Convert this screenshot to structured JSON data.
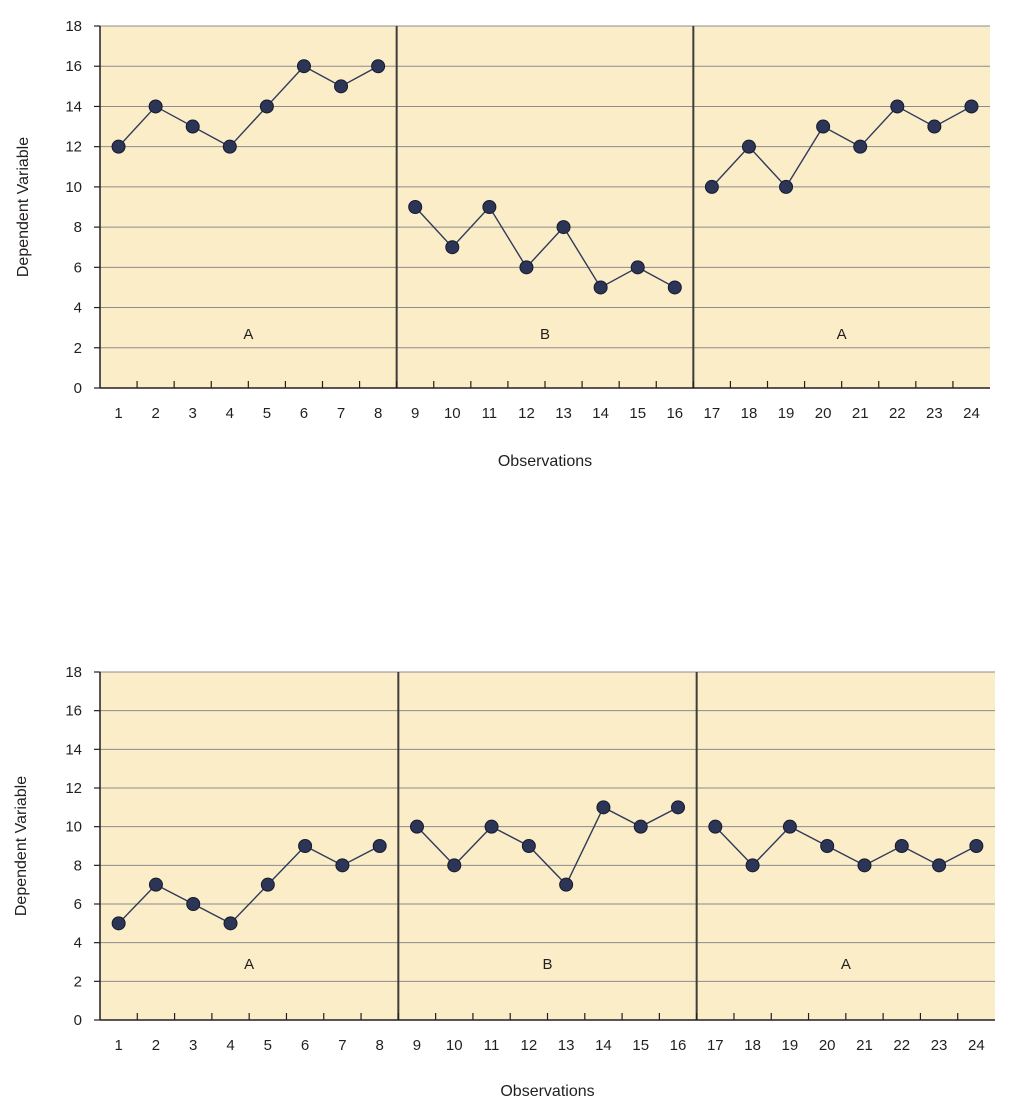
{
  "colors": {
    "plot_background": "#fbedc8",
    "gridline": "#8c8c8c",
    "axis": "#231f20",
    "phase_divider": "#3d3d3d",
    "line": "#2f3a5a",
    "marker_fill": "#2c3556",
    "marker_edge": "#141a30"
  },
  "chart_data": [
    {
      "type": "line",
      "xlabel": "Observations",
      "ylabel": "Dependent Variable",
      "xlim": [
        1,
        24
      ],
      "ylim": [
        0,
        18
      ],
      "yticks": [
        0,
        2,
        4,
        6,
        8,
        10,
        12,
        14,
        16,
        18
      ],
      "xticks": [
        1,
        2,
        3,
        4,
        5,
        6,
        7,
        8,
        9,
        10,
        11,
        12,
        13,
        14,
        15,
        16,
        17,
        18,
        19,
        20,
        21,
        22,
        23,
        24
      ],
      "grid": true,
      "phases": [
        {
          "label": "A",
          "x": [
            1,
            2,
            3,
            4,
            5,
            6,
            7,
            8
          ],
          "values": [
            12,
            14,
            13,
            12,
            14,
            16,
            15,
            16
          ]
        },
        {
          "label": "B",
          "x": [
            9,
            10,
            11,
            12,
            13,
            14,
            15,
            16
          ],
          "values": [
            9,
            7,
            9,
            6,
            8,
            5,
            6,
            5
          ]
        },
        {
          "label": "A",
          "x": [
            17,
            18,
            19,
            20,
            21,
            22,
            23,
            24
          ],
          "values": [
            10,
            12,
            10,
            13,
            12,
            14,
            13,
            14
          ]
        }
      ]
    },
    {
      "type": "line",
      "xlabel": "Observations",
      "ylabel": "Dependent Variable",
      "xlim": [
        1,
        24
      ],
      "ylim": [
        0,
        18
      ],
      "yticks": [
        0,
        2,
        4,
        6,
        8,
        10,
        12,
        14,
        16,
        18
      ],
      "xticks": [
        1,
        2,
        3,
        4,
        5,
        6,
        7,
        8,
        9,
        10,
        11,
        12,
        13,
        14,
        15,
        16,
        17,
        18,
        19,
        20,
        21,
        22,
        23,
        24
      ],
      "grid": true,
      "phases": [
        {
          "label": "A",
          "x": [
            1,
            2,
            3,
            4,
            5,
            6,
            7,
            8
          ],
          "values": [
            5,
            7,
            6,
            5,
            7,
            9,
            8,
            9
          ]
        },
        {
          "label": "B",
          "x": [
            9,
            10,
            11,
            12,
            13,
            14,
            15,
            16
          ],
          "values": [
            10,
            8,
            10,
            9,
            7,
            11,
            10,
            11
          ]
        },
        {
          "label": "A",
          "x": [
            17,
            18,
            19,
            20,
            21,
            22,
            23,
            24
          ],
          "values": [
            10,
            8,
            10,
            9,
            8,
            9,
            8,
            9
          ]
        }
      ]
    }
  ]
}
